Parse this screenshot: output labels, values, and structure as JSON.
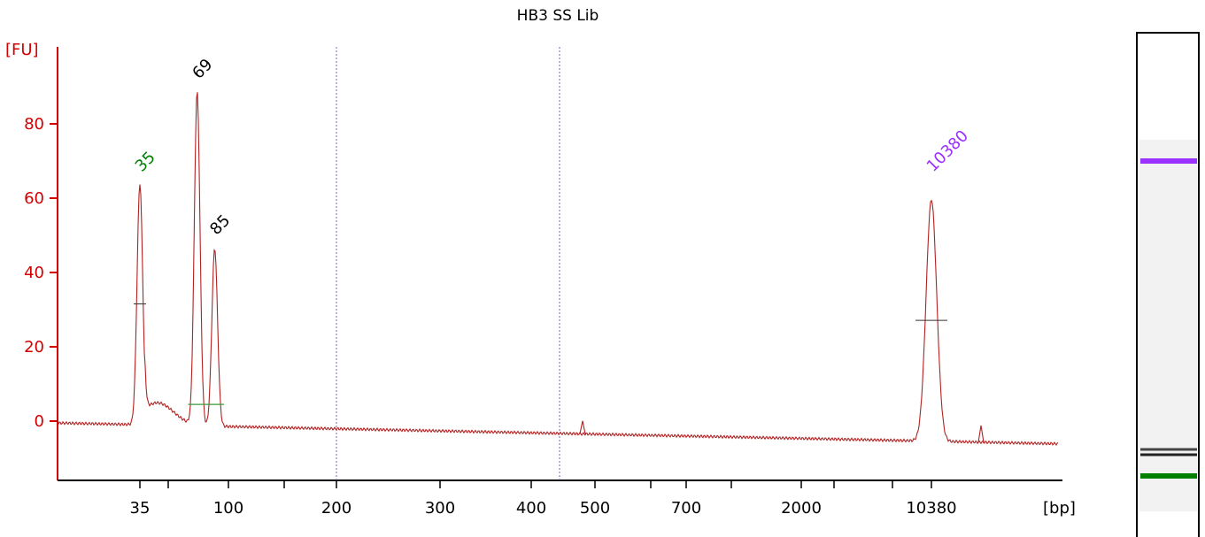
{
  "chart_data": {
    "type": "line",
    "title": "HB3 SS Lib",
    "ylabel": "[FU]",
    "xlabel": "[bp]",
    "ylim": [
      -16,
      100
    ],
    "y_ticks": [
      0,
      20,
      40,
      60,
      80
    ],
    "x_ticks": [
      "35",
      "100",
      "200",
      "300",
      "400",
      "500",
      "700",
      "2000",
      "10380"
    ],
    "colors": {
      "axis": "#d40000",
      "trace": "#b22222",
      "marker_lower": "#008000",
      "marker_upper": "#9b30ff",
      "peak_label": "#000000",
      "region_line": "#6a6acd"
    },
    "peaks": [
      {
        "label": "35",
        "bp": 35,
        "fu": 65,
        "kind": "marker_lower"
      },
      {
        "label": "69",
        "bp": 69,
        "fu": 90,
        "kind": "peak"
      },
      {
        "label": "85",
        "bp": 85,
        "fu": 48,
        "kind": "peak"
      },
      {
        "label": "10380",
        "bp": 10380,
        "fu": 65,
        "kind": "marker_upper"
      }
    ],
    "region_bounds_bp": [
      200,
      440
    ],
    "grid": false,
    "legend": "none"
  },
  "gel": {
    "bands": [
      {
        "name": "upper-marker-band",
        "color": "#9b30ff",
        "bp": 10380
      },
      {
        "name": "sample-band-1",
        "color": "#444444",
        "bp": 85
      },
      {
        "name": "sample-band-2",
        "color": "#222222",
        "bp": 69
      },
      {
        "name": "lower-marker-band",
        "color": "#008000",
        "bp": 35
      }
    ]
  }
}
